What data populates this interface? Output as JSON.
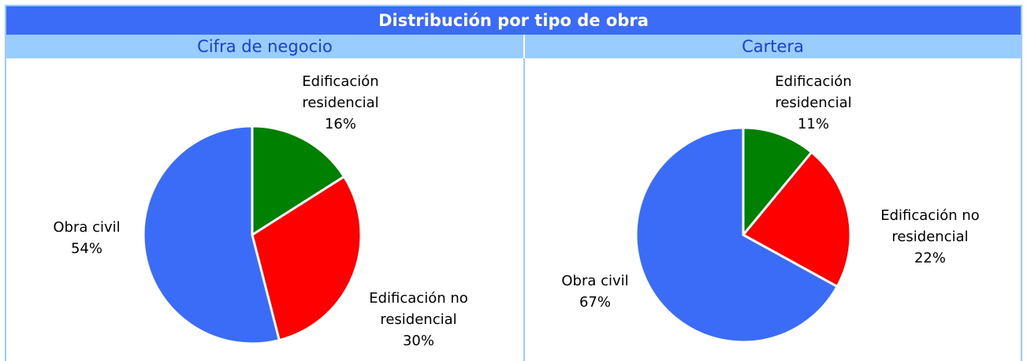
{
  "title": "Distribución por tipo de obra",
  "chart_data": [
    {
      "type": "pie",
      "title": "Cifra de negocio",
      "categories": [
        "Edificación residencial",
        "Edificación no residencial",
        "Obra civil"
      ],
      "values": [
        16,
        30,
        54
      ],
      "value_labels": [
        "16%",
        "30%",
        "54%"
      ],
      "colors": [
        "#008000",
        "#ff0000",
        "#3b6cf8"
      ]
    },
    {
      "type": "pie",
      "title": "Cartera",
      "categories": [
        "Edificación residencial",
        "Edificación no residencial",
        "Obra civil"
      ],
      "values": [
        11,
        22,
        67
      ],
      "value_labels": [
        "11%",
        "22%",
        "67%"
      ],
      "colors": [
        "#008000",
        "#ff0000",
        "#3b6cf8"
      ]
    }
  ]
}
